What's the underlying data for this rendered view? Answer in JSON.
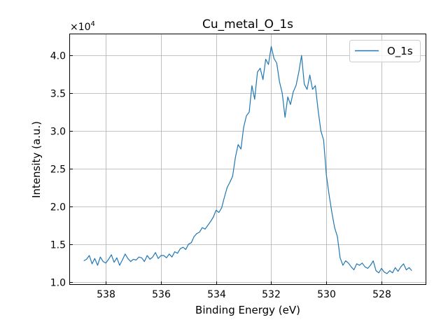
{
  "chart_data": {
    "type": "line",
    "title": "Cu_metal_O_1s",
    "xlabel": "Binding Energy (eV)",
    "ylabel": "Intensity (a.u.)",
    "y_scale_label": "×10",
    "y_scale_exponent": "4",
    "xlim": [
      539.3,
      526.4
    ],
    "ylim": [
      0.97,
      4.28
    ],
    "x_reversed": true,
    "grid": true,
    "legend_position": "top-right",
    "x_ticks": [
      538,
      536,
      534,
      532,
      530,
      528
    ],
    "x_tick_labels": [
      "538",
      "536",
      "534",
      "532",
      "530",
      "528"
    ],
    "y_ticks": [
      1.0,
      1.5,
      2.0,
      2.5,
      3.0,
      3.5,
      4.0
    ],
    "y_tick_labels": [
      "1.0",
      "1.5",
      "2.0",
      "2.5",
      "3.0",
      "3.5",
      "4.0"
    ],
    "series": [
      {
        "name": "O_1s",
        "color": "#1f77b4",
        "x": [
          538.8,
          538.7,
          538.6,
          538.5,
          538.4,
          538.3,
          538.2,
          538.1,
          538.0,
          537.9,
          537.8,
          537.7,
          537.6,
          537.5,
          537.4,
          537.3,
          537.2,
          537.1,
          537.0,
          536.9,
          536.8,
          536.7,
          536.6,
          536.5,
          536.4,
          536.3,
          536.2,
          536.1,
          536.0,
          535.9,
          535.8,
          535.7,
          535.6,
          535.5,
          535.4,
          535.3,
          535.2,
          535.1,
          535.0,
          534.9,
          534.8,
          534.7,
          534.6,
          534.5,
          534.4,
          534.3,
          534.2,
          534.1,
          534.0,
          533.9,
          533.8,
          533.7,
          533.6,
          533.5,
          533.4,
          533.3,
          533.2,
          533.1,
          533.0,
          532.9,
          532.8,
          532.7,
          532.6,
          532.5,
          532.4,
          532.3,
          532.2,
          532.1,
          532.0,
          531.9,
          531.8,
          531.7,
          531.6,
          531.5,
          531.4,
          531.3,
          531.2,
          531.1,
          531.0,
          530.9,
          530.8,
          530.7,
          530.6,
          530.5,
          530.4,
          530.3,
          530.2,
          530.1,
          530.0,
          529.9,
          529.8,
          529.7,
          529.6,
          529.5,
          529.4,
          529.3,
          529.2,
          529.1,
          529.0,
          528.9,
          528.8,
          528.7,
          528.6,
          528.5,
          528.4,
          528.3,
          528.2,
          528.1,
          528.0,
          527.9,
          527.8,
          527.7,
          527.6,
          527.5,
          527.4,
          527.3,
          527.2,
          527.1,
          527.0,
          526.9
        ],
        "values": [
          1.28,
          1.3,
          1.35,
          1.24,
          1.31,
          1.22,
          1.33,
          1.27,
          1.25,
          1.3,
          1.36,
          1.26,
          1.32,
          1.22,
          1.29,
          1.37,
          1.31,
          1.27,
          1.3,
          1.29,
          1.33,
          1.32,
          1.27,
          1.35,
          1.3,
          1.33,
          1.39,
          1.31,
          1.35,
          1.35,
          1.32,
          1.37,
          1.33,
          1.4,
          1.38,
          1.44,
          1.46,
          1.43,
          1.5,
          1.52,
          1.6,
          1.64,
          1.66,
          1.72,
          1.7,
          1.75,
          1.8,
          1.86,
          1.95,
          1.92,
          1.98,
          2.12,
          2.25,
          2.32,
          2.4,
          2.65,
          2.82,
          2.76,
          3.05,
          3.2,
          3.25,
          3.6,
          3.42,
          3.78,
          3.83,
          3.68,
          3.95,
          3.88,
          4.12,
          3.96,
          3.9,
          3.65,
          3.5,
          3.18,
          3.45,
          3.35,
          3.52,
          3.6,
          3.78,
          4.0,
          3.62,
          3.55,
          3.74,
          3.55,
          3.6,
          3.28,
          3.0,
          2.88,
          2.42,
          2.15,
          1.92,
          1.72,
          1.6,
          1.32,
          1.22,
          1.28,
          1.25,
          1.2,
          1.16,
          1.24,
          1.22,
          1.25,
          1.2,
          1.18,
          1.22,
          1.28,
          1.15,
          1.12,
          1.18,
          1.13,
          1.11,
          1.15,
          1.12,
          1.19,
          1.14,
          1.2,
          1.24,
          1.16,
          1.19,
          1.15
        ]
      }
    ]
  }
}
